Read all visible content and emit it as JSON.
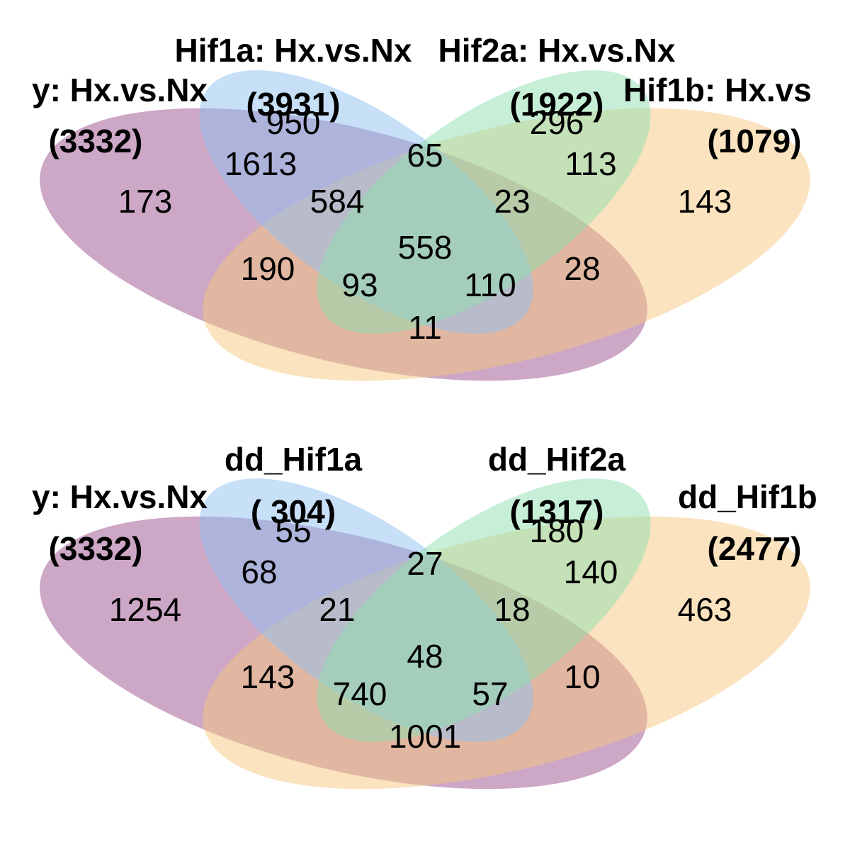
{
  "colors": {
    "set_a": "#9b4f8e",
    "set_b": "#8fbff0",
    "set_c": "#8fdfb0",
    "set_d": "#f5c77e"
  },
  "panels": [
    {
      "sets": [
        {
          "label": "y: Hx.vs.Nx",
          "total": "(3332)"
        },
        {
          "label": "Hif1a: Hx.vs.Nx",
          "total": "(3931)"
        },
        {
          "label": "Hif2a: Hx.vs.Nx",
          "total": "(1922)"
        },
        {
          "label": "Hif1b: Hx.vs",
          "total": "(1079)"
        }
      ],
      "counts": {
        "A": "173",
        "B": "950",
        "C": "296",
        "D": "143",
        "AB": "1613",
        "BC": "65",
        "CD": "113",
        "ABC": "584",
        "BCD": "23",
        "ABCD": "558",
        "AC": "190",
        "BD": "28",
        "ACD": "93",
        "ABD": "110",
        "AD": "11"
      }
    },
    {
      "sets": [
        {
          "label": "y: Hx.vs.Nx",
          "total": "(3332)"
        },
        {
          "label": "dd_Hif1a",
          "total": "( 304)"
        },
        {
          "label": "dd_Hif2a",
          "total": "(1317)"
        },
        {
          "label": "dd_Hif1b",
          "total": "(2477)"
        }
      ],
      "counts": {
        "A": "1254",
        "B": "55",
        "C": "180",
        "D": "463",
        "AB": "68",
        "BC": "27",
        "CD": "140",
        "ABC": "21",
        "BCD": "18",
        "ABCD": "48",
        "AC": "143",
        "BD": "10",
        "ACD": "740",
        "ABD": "57",
        "AD": "1001"
      }
    }
  ]
}
